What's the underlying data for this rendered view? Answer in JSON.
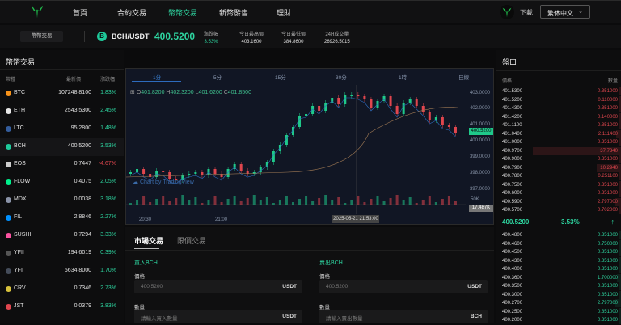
{
  "header": {
    "nav": [
      "首頁",
      "合約交易",
      "幣幣交易",
      "新幣發售",
      "理財"
    ],
    "active_nav": 2,
    "download_label": "下載",
    "language": "繁体中文"
  },
  "ticker": {
    "pill_label": "幣幣交易",
    "pair": "BCH/USDT",
    "coin_glyph": "B",
    "last_price": "400.5200",
    "stats": [
      {
        "label": "漲跌幅",
        "value": "3.53%"
      },
      {
        "label": "今日最高價",
        "value": "403.1600"
      },
      {
        "label": "今日最低價",
        "value": "384.8600"
      },
      {
        "label": "24H成交量",
        "value": "26926.5015"
      }
    ]
  },
  "market": {
    "title": "幣幣交易",
    "headers": [
      "幣種",
      "最新價",
      "漲跌幅"
    ],
    "rows": [
      {
        "sym": "BTC",
        "price": "107248.8100",
        "chg": "1.83%",
        "color": "#f7931a"
      },
      {
        "sym": "ETH",
        "price": "2543.5300",
        "chg": "2.45%",
        "color": "#e6e6e6"
      },
      {
        "sym": "LTC",
        "price": "95.2800",
        "chg": "1.48%",
        "color": "#345d9d"
      },
      {
        "sym": "BCH",
        "price": "400.5200",
        "chg": "3.53%",
        "color": "#1ec99a"
      },
      {
        "sym": "EOS",
        "price": "0.7447",
        "chg": "-4.67%",
        "color": "#cccccc"
      },
      {
        "sym": "FLOW",
        "price": "0.4075",
        "chg": "2.05%",
        "color": "#00ef8b"
      },
      {
        "sym": "MDX",
        "price": "0.0038",
        "chg": "3.18%",
        "color": "#8a93a8"
      },
      {
        "sym": "FIL",
        "price": "2.8846",
        "chg": "2.27%",
        "color": "#0090ff"
      },
      {
        "sym": "SUSHI",
        "price": "0.7294",
        "chg": "3.33%",
        "color": "#fa52a0"
      },
      {
        "sym": "YFII",
        "price": "194.6019",
        "chg": "0.39%",
        "color": "#555"
      },
      {
        "sym": "YFI",
        "price": "5634.8000",
        "chg": "1.70%",
        "color": "#444c5a"
      },
      {
        "sym": "CRV",
        "price": "0.7346",
        "chg": "2.73%",
        "color": "#d8c23c"
      },
      {
        "sym": "JST",
        "price": "0.0379",
        "chg": "3.83%",
        "color": "#e0464e"
      }
    ]
  },
  "chart": {
    "timeframes": [
      "1分",
      "5分",
      "15分",
      "30分",
      "1時",
      "日線"
    ],
    "active_tf": 0,
    "ohlc": {
      "o": "401.8200",
      "h": "402.3200",
      "l": "401.6200",
      "c": "401.8500"
    },
    "y_ticks": [
      "403.0000",
      "402.0000",
      "401.0000",
      "400.0000",
      "399.0000",
      "398.0000",
      "397.0000"
    ],
    "current_price_tag": "400.5200",
    "vol_label": "50K",
    "vol_tag": "17.487K",
    "x_ticks": [
      "20:30",
      "21:00"
    ],
    "crosshair_time": "2025-05-21 21:53:00",
    "watermark": "Chart by TradingView"
  },
  "trade": {
    "tabs": [
      "市場交易",
      "限價交易"
    ],
    "buy": {
      "title": "買入BCH",
      "price_label": "價格",
      "price_value": "400.5200",
      "price_unit": "USDT",
      "qty_label": "數量",
      "qty_placeholder": "請輸入買入數量",
      "qty_unit": "USDT"
    },
    "sell": {
      "title": "賣出BCH",
      "price_label": "價格",
      "price_value": "400.5200",
      "price_unit": "USDT",
      "qty_label": "數量",
      "qty_placeholder": "請輸入賣出數量",
      "qty_unit": "BCH"
    }
  },
  "orderbook": {
    "title": "盤口",
    "headers": [
      "價格",
      "數量"
    ],
    "asks": [
      [
        "401.5300",
        "0.351000"
      ],
      [
        "401.5200",
        "0.110000"
      ],
      [
        "401.4300",
        "0.351000"
      ],
      [
        "401.4200",
        "0.140000"
      ],
      [
        "401.1100",
        "0.351000"
      ],
      [
        "401.0400",
        "2.111400"
      ],
      [
        "401.0000",
        "0.351000"
      ],
      [
        "400.9700",
        "37.7340"
      ],
      [
        "400.9000",
        "0.351000"
      ],
      [
        "400.7900",
        "10.2940"
      ],
      [
        "400.7800",
        "0.251100"
      ],
      [
        "400.7500",
        "0.351000"
      ],
      [
        "400.6000",
        "0.351000"
      ],
      [
        "400.5900",
        "2.797000"
      ],
      [
        "400.5700",
        "0.702000"
      ]
    ],
    "mid_price": "400.5200",
    "mid_change": "3.53%",
    "mid_arrow": "↑",
    "bids": [
      [
        "400.4800",
        "0.351000"
      ],
      [
        "400.4600",
        "0.750000"
      ],
      [
        "400.4500",
        "0.351000"
      ],
      [
        "400.4300",
        "0.351000"
      ],
      [
        "400.4000",
        "0.351000"
      ],
      [
        "400.3600",
        "1.700000"
      ],
      [
        "400.3500",
        "0.351000"
      ],
      [
        "400.3000",
        "0.351000"
      ],
      [
        "400.2700",
        "2.797000"
      ],
      [
        "400.2500",
        "0.351000"
      ],
      [
        "400.2000",
        "0.351000"
      ]
    ]
  },
  "colors": {
    "up": "#2ed5a0",
    "down": "#e0464e",
    "bg": "#0b0b0c",
    "chart_bg": "#111624"
  }
}
